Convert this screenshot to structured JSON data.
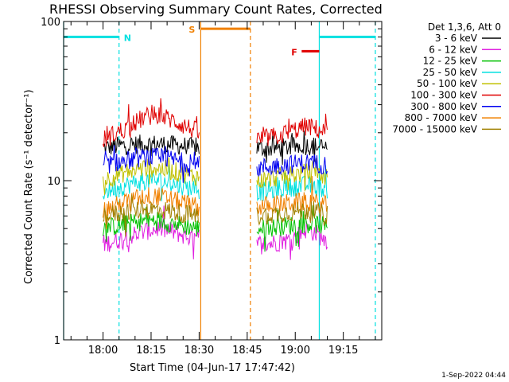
{
  "chart_data": {
    "type": "line",
    "title": "RHESSI Observing Summary Count Rates, Corrected",
    "xlabel": "Start Time (04-Jun-17 17:47:42)",
    "ylabel": "Corrected Count Rate (s⁻¹ detector⁻¹)",
    "y_scale": "log",
    "ylim": [
      1,
      100
    ],
    "y_ticks": [
      {
        "value": 1,
        "label": "1"
      },
      {
        "value": 10,
        "label": "10"
      },
      {
        "value": 100,
        "label": "100"
      }
    ],
    "x_ticks": [
      {
        "minute": 0,
        "label": "18:00"
      },
      {
        "minute": 15,
        "label": "18:15"
      },
      {
        "minute": 30,
        "label": "18:30"
      },
      {
        "minute": 45,
        "label": "18:45"
      },
      {
        "minute": 60,
        "label": "19:00"
      },
      {
        "minute": 75,
        "label": "19:15"
      }
    ],
    "x_range_minutes_from_1800": [
      -12.3,
      87
    ],
    "legend_title": "Det 1,3,6, Att 0",
    "series": [
      {
        "name": "3 - 6 keV",
        "color": "#000000",
        "segments": [
          {
            "start": 0,
            "end": 30,
            "values": [
              16,
              16.5,
              16.8,
              17,
              17,
              16.8,
              16.5,
              16
            ]
          },
          {
            "start": 48,
            "end": 70,
            "values": [
              16,
              16,
              16,
              16.2,
              16.5,
              16.6,
              16.4,
              16
            ]
          }
        ]
      },
      {
        "name": "6 - 12 keV",
        "color": "#e020e0",
        "segments": [
          {
            "start": 0,
            "end": 30,
            "values": [
              4,
              4.2,
              4.5,
              4.8,
              5,
              4.8,
              4.5,
              4.2
            ]
          },
          {
            "start": 48,
            "end": 70,
            "values": [
              4,
              4,
              4.1,
              4.2,
              4.5,
              5,
              4.6,
              4.2
            ]
          }
        ]
      },
      {
        "name": "12 - 25 keV",
        "color": "#00c000",
        "segments": [
          {
            "start": 0,
            "end": 30,
            "values": [
              5,
              5.2,
              5.4,
              5.6,
              5.6,
              5.4,
              5.2,
              5
            ]
          },
          {
            "start": 48,
            "end": 70,
            "values": [
              5,
              5,
              5.1,
              5.2,
              5.3,
              5.4,
              5.3,
              5.1
            ]
          }
        ]
      },
      {
        "name": "25 - 50 keV",
        "color": "#00e0e0",
        "segments": [
          {
            "start": 0,
            "end": 30,
            "values": [
              8.5,
              9,
              9.5,
              10,
              10,
              9.6,
              9.2,
              8.8
            ]
          },
          {
            "start": 48,
            "end": 70,
            "values": [
              8.5,
              8.6,
              8.8,
              9,
              9.2,
              9.4,
              9.1,
              8.8
            ]
          }
        ]
      },
      {
        "name": "50 - 100 keV",
        "color": "#c0c000",
        "segments": [
          {
            "start": 0,
            "end": 30,
            "values": [
              10,
              10.8,
              11.5,
              12,
              12,
              11.5,
              11,
              10.5
            ]
          },
          {
            "start": 48,
            "end": 70,
            "values": [
              10,
              10.2,
              10.5,
              10.8,
              11,
              11.2,
              10.9,
              10.5
            ]
          }
        ]
      },
      {
        "name": "100 - 300 keV",
        "color": "#e00000",
        "segments": [
          {
            "start": 0,
            "end": 30,
            "values": [
              18,
              20,
              22,
              25,
              26,
              24,
              22,
              20
            ]
          },
          {
            "start": 48,
            "end": 70,
            "values": [
              18,
              18.5,
              19,
              20,
              21,
              22,
              21,
              20
            ]
          }
        ]
      },
      {
        "name": "300 - 800 keV",
        "color": "#0000f0",
        "segments": [
          {
            "start": 0,
            "end": 30,
            "values": [
              12.5,
              13,
              13.5,
              14,
              14,
              13.6,
              13,
              12.5
            ]
          },
          {
            "start": 48,
            "end": 70,
            "values": [
              12,
              12.2,
              12.4,
              12.6,
              12.8,
              13,
              12.8,
              12.5
            ]
          }
        ]
      },
      {
        "name": "800 - 7000 keV",
        "color": "#f08000",
        "segments": [
          {
            "start": 0,
            "end": 30,
            "values": [
              6.5,
              7,
              7.5,
              8,
              8,
              7.6,
              7.2,
              6.8
            ]
          },
          {
            "start": 48,
            "end": 70,
            "values": [
              6.8,
              7,
              7.1,
              7.2,
              7.3,
              7.4,
              7.2,
              7
            ]
          }
        ]
      },
      {
        "name": "7000 - 15000 keV",
        "color": "#a08000",
        "segments": [
          {
            "start": 0,
            "end": 30,
            "values": [
              6,
              6.2,
              6.4,
              6.6,
              6.6,
              6.4,
              6.2,
              6
            ]
          },
          {
            "start": 48,
            "end": 70,
            "values": [
              6,
              6.1,
              6.2,
              6.3,
              6.4,
              6.5,
              6.3,
              6.1
            ]
          }
        ]
      }
    ],
    "intervals": [
      {
        "label": "N",
        "color": "#00e0e0",
        "start": -12.3,
        "end": 5,
        "bar_level": 80
      },
      {
        "label": "N",
        "color": "#00e0e0",
        "start": 67.5,
        "end": 85,
        "bar_level": 80
      },
      {
        "label": "S",
        "color": "#f08000",
        "start": 30.5,
        "end": 46,
        "bar_level": 90
      },
      {
        "label": "F",
        "color": "#e00000",
        "start": 62,
        "end": 67.5,
        "bar_level": 65
      }
    ],
    "footer": "1-Sep-2022 04:44"
  }
}
